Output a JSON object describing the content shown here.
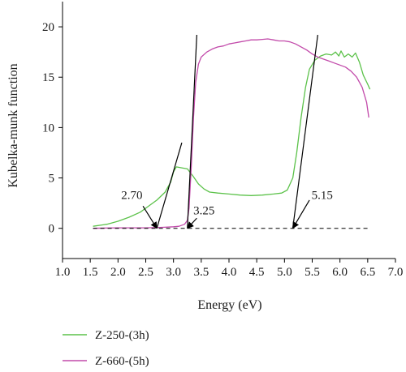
{
  "chart_data": {
    "type": "line",
    "xlabel": "Energy (eV)",
    "ylabel": "Kubelka-munk function",
    "xlim": [
      1.0,
      7.0
    ],
    "ylim": [
      -3.0,
      22.5
    ],
    "xticks": [
      1.0,
      1.5,
      2.0,
      2.5,
      3.0,
      3.5,
      4.0,
      4.5,
      5.0,
      5.5,
      6.0,
      6.5,
      7.0
    ],
    "xtick_labels": [
      "1.0",
      "1.5",
      "2.0",
      "2.5",
      "3.0",
      "3.5",
      "4.0",
      "4.5",
      "5.0",
      "5.5",
      "6.0",
      "6.5",
      "7.0"
    ],
    "yticks": [
      0,
      5,
      10,
      15,
      20
    ],
    "ytick_labels": [
      "0",
      "5",
      "10",
      "15",
      "20"
    ],
    "grid": false,
    "legend_position": "bottom-left",
    "series": [
      {
        "name": "Z-250-(3h)",
        "color": "#5cc24a",
        "points": [
          [
            1.55,
            0.2
          ],
          [
            1.8,
            0.4
          ],
          [
            2.0,
            0.7
          ],
          [
            2.2,
            1.1
          ],
          [
            2.4,
            1.6
          ],
          [
            2.55,
            2.2
          ],
          [
            2.7,
            2.8
          ],
          [
            2.85,
            3.6
          ],
          [
            2.95,
            4.6
          ],
          [
            3.0,
            5.6
          ],
          [
            3.05,
            6.1
          ],
          [
            3.15,
            6.0
          ],
          [
            3.25,
            5.9
          ],
          [
            3.35,
            5.2
          ],
          [
            3.45,
            4.4
          ],
          [
            3.55,
            3.9
          ],
          [
            3.65,
            3.6
          ],
          [
            3.8,
            3.5
          ],
          [
            4.0,
            3.4
          ],
          [
            4.2,
            3.3
          ],
          [
            4.4,
            3.25
          ],
          [
            4.6,
            3.3
          ],
          [
            4.8,
            3.4
          ],
          [
            4.95,
            3.5
          ],
          [
            5.05,
            3.8
          ],
          [
            5.15,
            5.0
          ],
          [
            5.22,
            7.5
          ],
          [
            5.3,
            11.0
          ],
          [
            5.38,
            14.0
          ],
          [
            5.45,
            15.8
          ],
          [
            5.55,
            16.7
          ],
          [
            5.65,
            17.1
          ],
          [
            5.75,
            17.3
          ],
          [
            5.85,
            17.2
          ],
          [
            5.92,
            17.5
          ],
          [
            5.98,
            17.1
          ],
          [
            6.02,
            17.6
          ],
          [
            6.08,
            17.0
          ],
          [
            6.15,
            17.3
          ],
          [
            6.22,
            17.0
          ],
          [
            6.28,
            17.4
          ],
          [
            6.35,
            16.5
          ],
          [
            6.42,
            15.2
          ],
          [
            6.5,
            14.3
          ],
          [
            6.54,
            13.8
          ]
        ]
      },
      {
        "name": "Z-660-(5h)",
        "color": "#c24aaa",
        "points": [
          [
            1.55,
            0.0
          ],
          [
            2.0,
            0.05
          ],
          [
            2.5,
            0.05
          ],
          [
            2.8,
            0.1
          ],
          [
            3.0,
            0.15
          ],
          [
            3.1,
            0.2
          ],
          [
            3.2,
            0.4
          ],
          [
            3.25,
            0.8
          ],
          [
            3.28,
            2.0
          ],
          [
            3.32,
            6.0
          ],
          [
            3.36,
            11.0
          ],
          [
            3.4,
            14.5
          ],
          [
            3.45,
            16.3
          ],
          [
            3.5,
            17.0
          ],
          [
            3.6,
            17.5
          ],
          [
            3.7,
            17.8
          ],
          [
            3.8,
            18.0
          ],
          [
            3.9,
            18.1
          ],
          [
            4.0,
            18.3
          ],
          [
            4.1,
            18.4
          ],
          [
            4.2,
            18.5
          ],
          [
            4.3,
            18.6
          ],
          [
            4.4,
            18.7
          ],
          [
            4.5,
            18.7
          ],
          [
            4.6,
            18.75
          ],
          [
            4.7,
            18.8
          ],
          [
            4.8,
            18.7
          ],
          [
            4.9,
            18.6
          ],
          [
            5.0,
            18.6
          ],
          [
            5.1,
            18.5
          ],
          [
            5.2,
            18.3
          ],
          [
            5.3,
            18.0
          ],
          [
            5.4,
            17.7
          ],
          [
            5.5,
            17.3
          ],
          [
            5.6,
            17.0
          ],
          [
            5.7,
            16.8
          ],
          [
            5.8,
            16.6
          ],
          [
            5.9,
            16.4
          ],
          [
            6.0,
            16.2
          ],
          [
            6.1,
            16.0
          ],
          [
            6.2,
            15.6
          ],
          [
            6.3,
            15.0
          ],
          [
            6.4,
            14.0
          ],
          [
            6.48,
            12.5
          ],
          [
            6.52,
            11.0
          ]
        ]
      }
    ],
    "tangent_lines": [
      {
        "from": [
          2.7,
          0.0
        ],
        "to": [
          3.15,
          8.5
        ]
      },
      {
        "from": [
          3.25,
          0.0
        ],
        "to": [
          3.42,
          19.2
        ]
      },
      {
        "from": [
          5.15,
          0.0
        ],
        "to": [
          5.6,
          19.2
        ]
      }
    ],
    "baseline": {
      "y": 0,
      "from_x": 1.55,
      "to_x": 6.5,
      "style": "dashed"
    },
    "annotations": [
      {
        "text": "2.70",
        "arrow_tail": [
          2.45,
          2.2
        ],
        "arrow_head": [
          2.7,
          0.0
        ],
        "label_at": [
          2.25,
          3.3
        ]
      },
      {
        "text": "3.25",
        "arrow_tail": [
          3.42,
          1.0
        ],
        "arrow_head": [
          3.25,
          0.0
        ],
        "label_at": [
          3.55,
          1.8
        ]
      },
      {
        "text": "5.15",
        "arrow_tail": [
          5.45,
          2.8
        ],
        "arrow_head": [
          5.15,
          0.0
        ],
        "label_at": [
          5.68,
          3.3
        ]
      }
    ]
  }
}
